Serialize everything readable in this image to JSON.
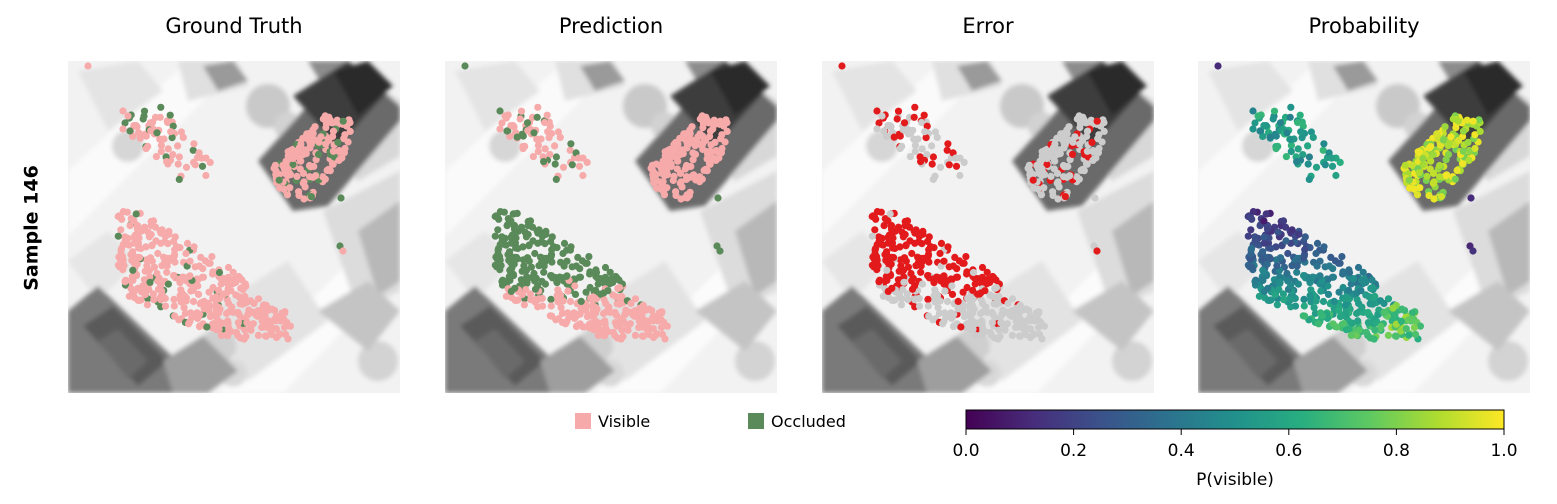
{
  "row_label": "Sample 146",
  "panels": [
    {
      "title": "Ground Truth",
      "mode": "gt"
    },
    {
      "title": "Prediction",
      "mode": "pred"
    },
    {
      "title": "Error",
      "mode": "err"
    },
    {
      "title": "Probability",
      "mode": "prob"
    }
  ],
  "legend": [
    {
      "label": "Visible",
      "color": "#f7aaaa"
    },
    {
      "label": "Occluded",
      "color": "#5a8a5a"
    }
  ],
  "colorbar": {
    "label": "P(visible)",
    "colormap": "viridis",
    "range": [
      0.0,
      1.0
    ],
    "ticks": [
      "0.0",
      "0.2",
      "0.4",
      "0.6",
      "0.8",
      "1.0"
    ]
  },
  "colors": {
    "visible": "#f7aaaa",
    "occluded": "#5a8a5a",
    "correct": "#cccccc",
    "error": "#e31a1c"
  },
  "chart_data": {
    "type": "scatter",
    "title": "",
    "xlabel": "",
    "ylabel": "",
    "clusters": [
      {
        "name": "top-left-small",
        "gt_visible_fraction": 0.75,
        "mean_probability": 0.55
      },
      {
        "name": "top-right-building",
        "gt_visible_fraction": 0.85,
        "mean_probability": 0.9
      },
      {
        "name": "bottom-left-large",
        "gt_visible_fraction": 0.92,
        "mean_probability": 0.45
      },
      {
        "name": "bottom-right-small",
        "gt_visible_fraction": 1.0,
        "mean_probability": 0.75
      },
      {
        "name": "isolated-points",
        "gt_visible_fraction": 0.3,
        "mean_probability": 0.1
      }
    ]
  }
}
